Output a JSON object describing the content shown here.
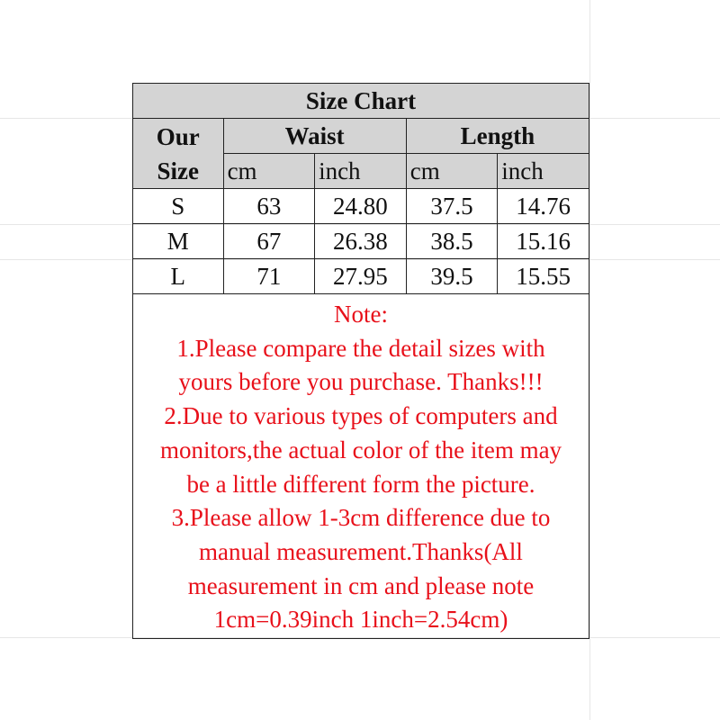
{
  "title": "Size Chart",
  "headers": {
    "size_label": [
      "Our",
      "Size"
    ],
    "groups": [
      "Waist",
      "Length"
    ],
    "units": [
      "cm",
      "inch",
      "cm",
      "inch"
    ]
  },
  "rows": [
    {
      "size": "S",
      "waist_cm": "63",
      "waist_inch": "24.80",
      "length_cm": "37.5",
      "length_inch": "14.76"
    },
    {
      "size": "M",
      "waist_cm": "67",
      "waist_inch": "26.38",
      "length_cm": "38.5",
      "length_inch": "15.16"
    },
    {
      "size": "L",
      "waist_cm": "71",
      "waist_inch": "27.95",
      "length_cm": "39.5",
      "length_inch": "15.55"
    }
  ],
  "note_lines": [
    "Note:",
    "1.Please compare the detail sizes with",
    "yours before you purchase. Thanks!!!",
    "2.Due to various types of computers and",
    "monitors,the actual color of the item may",
    "be a little different form the picture.",
    "3.Please allow 1-3cm difference due to",
    "manual measurement.Thanks(All",
    "measurement in cm and please note",
    "1cm=0.39inch 1inch=2.54cm)"
  ],
  "colors": {
    "header_bg": "#d4d4d4",
    "note_text": "#e8101a"
  }
}
